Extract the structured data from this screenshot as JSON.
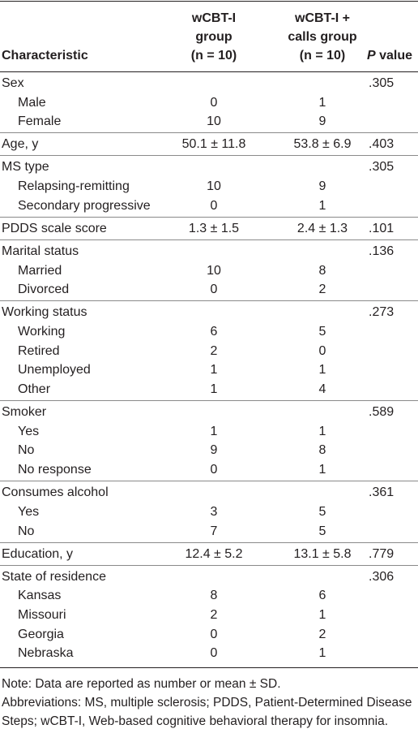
{
  "table": {
    "headers": {
      "characteristic": "Characteristic",
      "group1": [
        "wCBT-I",
        "group",
        "(n = 10)"
      ],
      "group2": [
        "wCBT-I +",
        "calls group",
        "(n = 10)"
      ],
      "p_value": [
        "P",
        "value"
      ]
    },
    "groups": [
      {
        "label": "Sex",
        "p": ".305",
        "items": [
          {
            "label": "Male",
            "g1": "0",
            "g2": "1"
          },
          {
            "label": "Female",
            "g1": "10",
            "g2": "9"
          }
        ]
      },
      {
        "label": "Age, y",
        "g1": "50.1 ± 11.8",
        "g2": "53.8 ± 6.9",
        "p": ".403"
      },
      {
        "label": "MS type",
        "p": ".305",
        "items": [
          {
            "label": "Relapsing-remitting",
            "g1": "10",
            "g2": "9"
          },
          {
            "label": "Secondary progressive",
            "g1": "0",
            "g2": "1"
          }
        ]
      },
      {
        "label": "PDDS scale score",
        "g1": "1.3 ± 1.5",
        "g2": "2.4 ± 1.3",
        "p": ".101"
      },
      {
        "label": "Marital status",
        "p": ".136",
        "items": [
          {
            "label": "Married",
            "g1": "10",
            "g2": "8"
          },
          {
            "label": "Divorced",
            "g1": "0",
            "g2": "2"
          }
        ]
      },
      {
        "label": "Working status",
        "p": ".273",
        "items": [
          {
            "label": "Working",
            "g1": "6",
            "g2": "5"
          },
          {
            "label": "Retired",
            "g1": "2",
            "g2": "0"
          },
          {
            "label": "Unemployed",
            "g1": "1",
            "g2": "1"
          },
          {
            "label": "Other",
            "g1": "1",
            "g2": "4"
          }
        ]
      },
      {
        "label": "Smoker",
        "p": ".589",
        "items": [
          {
            "label": "Yes",
            "g1": "1",
            "g2": "1"
          },
          {
            "label": "No",
            "g1": "9",
            "g2": "8"
          },
          {
            "label": "No response",
            "g1": "0",
            "g2": "1"
          }
        ]
      },
      {
        "label": "Consumes alcohol",
        "p": ".361",
        "items": [
          {
            "label": "Yes",
            "g1": "3",
            "g2": "5"
          },
          {
            "label": "No",
            "g1": "7",
            "g2": "5"
          }
        ]
      },
      {
        "label": "Education, y",
        "g1": "12.4 ± 5.2",
        "g2": "13.1 ± 5.8",
        "p": ".779"
      },
      {
        "label": "State of residence",
        "p": ".306",
        "items": [
          {
            "label": "Kansas",
            "g1": "8",
            "g2": "6"
          },
          {
            "label": "Missouri",
            "g1": "2",
            "g2": "1"
          },
          {
            "label": "Georgia",
            "g1": "0",
            "g2": "2"
          },
          {
            "label": "Nebraska",
            "g1": "0",
            "g2": "1"
          }
        ]
      }
    ],
    "notes": [
      "Note: Data are reported as number or mean ± SD.",
      "Abbreviations: MS, multiple sclerosis; PDDS, Patient-Determined Disease Steps; wCBT-I, Web-based cognitive behavioral therapy for insomnia."
    ]
  }
}
